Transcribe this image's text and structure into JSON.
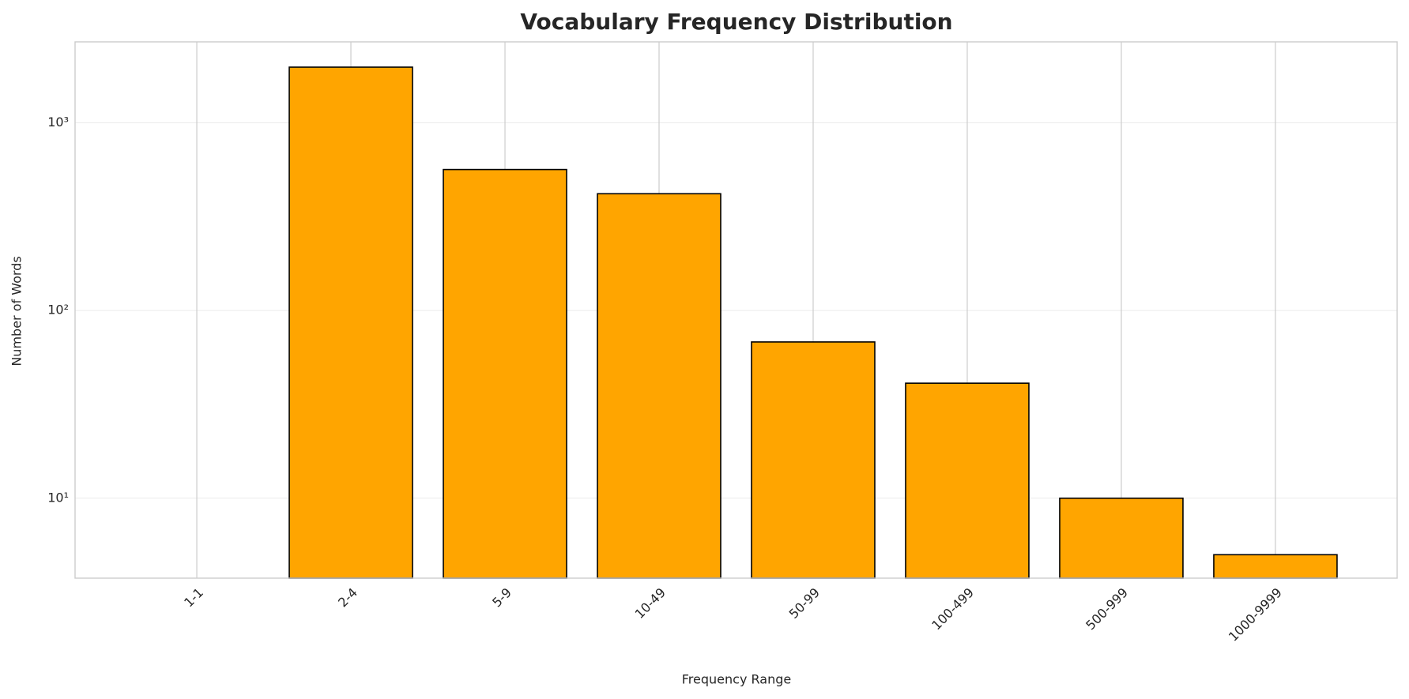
{
  "chart_data": {
    "type": "bar",
    "title": "Vocabulary Frequency Distribution",
    "xlabel": "Frequency Range",
    "ylabel": "Number of Words",
    "categories": [
      "1-1",
      "2-4",
      "5-9",
      "10-49",
      "50-99",
      "100-499",
      "500-999",
      "1000-9999"
    ],
    "values": [
      null,
      1980,
      564,
      419,
      68,
      41,
      10,
      5
    ],
    "color": "#ffa500",
    "edgecolor": "#000000",
    "yscale": "log",
    "ylim": [
      3.75,
      2700
    ],
    "yticks": [
      {
        "value": 10,
        "label": "10¹"
      },
      {
        "value": 100,
        "label": "10²"
      },
      {
        "value": 1000,
        "label": "10³"
      }
    ],
    "grid": true
  }
}
